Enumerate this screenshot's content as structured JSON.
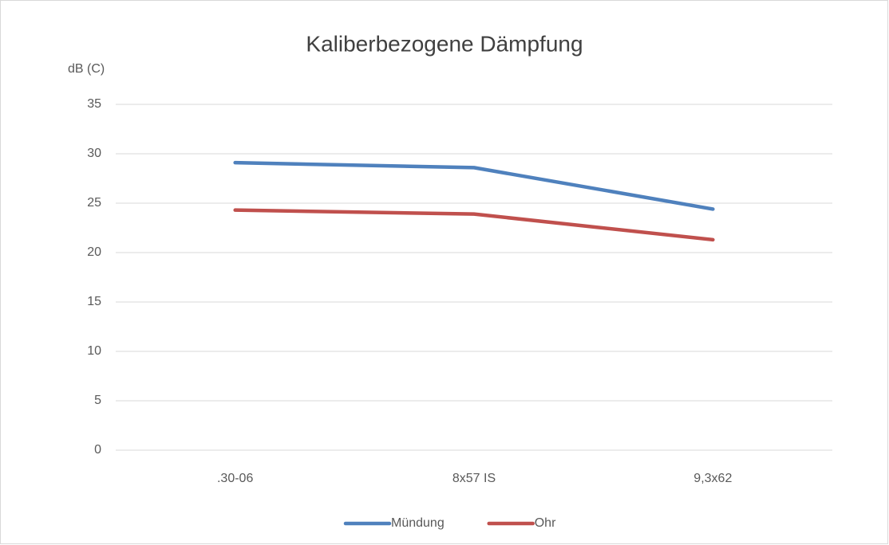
{
  "chart_data": {
    "type": "line",
    "title": "Kaliberbezogene Dämpfung",
    "y_label": "dB (C)",
    "categories": [
      ".30-06",
      "8x57 IS",
      "9,3x62"
    ],
    "series": [
      {
        "name": "Mündung",
        "color": "#4f81bd",
        "values": [
          29.1,
          28.6,
          24.4
        ]
      },
      {
        "name": "Ohr",
        "color": "#c0504d",
        "values": [
          24.3,
          23.9,
          21.3
        ]
      }
    ],
    "ylim": [
      0,
      35
    ],
    "yticks": [
      0,
      5,
      10,
      15,
      20,
      25,
      30,
      35
    ],
    "grid": true,
    "legend": "bottom"
  }
}
